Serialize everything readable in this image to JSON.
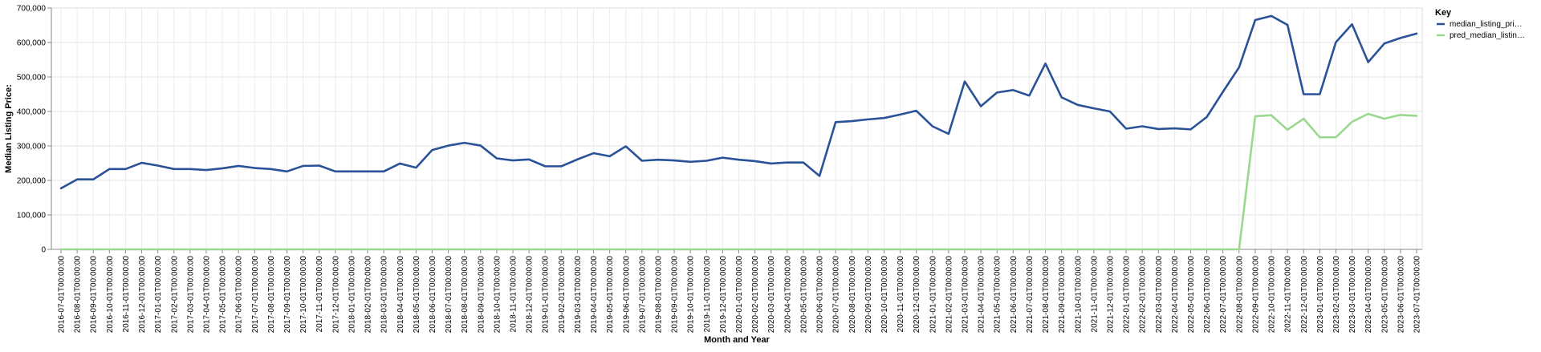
{
  "chart_data": {
    "type": "line",
    "xlabel": "Month and Year",
    "ylabel": "Median Listing Price:",
    "ylim": [
      0,
      700000
    ],
    "yticks": [
      "0",
      "100,000",
      "200,000",
      "300,000",
      "400,000",
      "500,000",
      "600,000",
      "700,000"
    ],
    "ytick_values": [
      0,
      100000,
      200000,
      300000,
      400000,
      500000,
      600000,
      700000
    ],
    "grid": true,
    "legend": {
      "title": "Key",
      "placement": "right",
      "entries": [
        {
          "label": "median_listing_pri…",
          "color": "#2a5298"
        },
        {
          "label": "pred_median_listin…",
          "color": "#9bd88f"
        }
      ]
    },
    "categories": [
      "2016-07-01T00:00:00",
      "2016-08-01T00:00:00",
      "2016-09-01T00:00:00",
      "2016-10-01T00:00:00",
      "2016-11-01T00:00:00",
      "2016-12-01T00:00:00",
      "2017-01-01T00:00:00",
      "2017-02-01T00:00:00",
      "2017-03-01T00:00:00",
      "2017-04-01T00:00:00",
      "2017-05-01T00:00:00",
      "2017-06-01T00:00:00",
      "2017-07-01T00:00:00",
      "2017-08-01T00:00:00",
      "2017-09-01T00:00:00",
      "2017-10-01T00:00:00",
      "2017-11-01T00:00:00",
      "2017-12-01T00:00:00",
      "2018-01-01T00:00:00",
      "2018-02-01T00:00:00",
      "2018-03-01T00:00:00",
      "2018-04-01T00:00:00",
      "2018-05-01T00:00:00",
      "2018-06-01T00:00:00",
      "2018-07-01T00:00:00",
      "2018-08-01T00:00:00",
      "2018-09-01T00:00:00",
      "2018-10-01T00:00:00",
      "2018-11-01T00:00:00",
      "2018-12-01T00:00:00",
      "2019-01-01T00:00:00",
      "2019-02-01T00:00:00",
      "2019-03-01T00:00:00",
      "2019-04-01T00:00:00",
      "2019-05-01T00:00:00",
      "2019-06-01T00:00:00",
      "2019-07-01T00:00:00",
      "2019-08-01T00:00:00",
      "2019-09-01T00:00:00",
      "2019-10-01T00:00:00",
      "2019-11-01T00:00:00",
      "2019-12-01T00:00:00",
      "2020-01-01T00:00:00",
      "2020-02-01T00:00:00",
      "2020-03-01T00:00:00",
      "2020-04-01T00:00:00",
      "2020-05-01T00:00:00",
      "2020-06-01T00:00:00",
      "2020-07-01T00:00:00",
      "2020-08-01T00:00:00",
      "2020-09-01T00:00:00",
      "2020-10-01T00:00:00",
      "2020-11-01T00:00:00",
      "2020-12-01T00:00:00",
      "2021-01-01T00:00:00",
      "2021-02-01T00:00:00",
      "2021-03-01T00:00:00",
      "2021-04-01T00:00:00",
      "2021-05-01T00:00:00",
      "2021-06-01T00:00:00",
      "2021-07-01T00:00:00",
      "2021-08-01T00:00:00",
      "2021-09-01T00:00:00",
      "2021-10-01T00:00:00",
      "2021-11-01T00:00:00",
      "2021-12-01T00:00:00",
      "2022-01-01T00:00:00",
      "2022-02-01T00:00:00",
      "2022-03-01T00:00:00",
      "2022-04-01T00:00:00",
      "2022-05-01T00:00:00",
      "2022-06-01T00:00:00",
      "2022-07-01T00:00:00",
      "2022-08-01T00:00:00",
      "2022-09-01T00:00:00",
      "2022-10-01T00:00:00",
      "2022-11-01T00:00:00",
      "2022-12-01T00:00:00",
      "2023-01-01T00:00:00",
      "2023-02-01T00:00:00",
      "2023-03-01T00:00:00",
      "2023-04-01T00:00:00",
      "2023-05-01T00:00:00",
      "2023-06-01T00:00:00",
      "2023-07-01T00:00:00"
    ],
    "series": [
      {
        "name": "median_listing_pri…",
        "color": "#2a5298",
        "values": [
          177000,
          203000,
          203000,
          233000,
          233000,
          251000,
          243000,
          233000,
          233000,
          230000,
          235000,
          242000,
          236000,
          233000,
          226000,
          242000,
          243000,
          226000,
          226000,
          226000,
          226000,
          249000,
          237000,
          288000,
          301000,
          309000,
          301000,
          264000,
          258000,
          261000,
          241000,
          241000,
          261000,
          279000,
          270000,
          299000,
          257000,
          260000,
          258000,
          254000,
          257000,
          266000,
          260000,
          256000,
          249000,
          252000,
          252000,
          213000,
          369000,
          372000,
          377000,
          381000,
          391000,
          402000,
          357000,
          335000,
          487000,
          415000,
          455000,
          462000,
          446000,
          539000,
          441000,
          419000,
          409000,
          400000,
          350000,
          357000,
          349000,
          351000,
          348000,
          384000,
          457000,
          528000,
          665000,
          677000,
          651000,
          450000,
          450000,
          601000,
          653000,
          543000,
          597000,
          613000,
          626000
        ]
      },
      {
        "name": "pred_median_listin…",
        "color": "#9bd88f",
        "values": [
          0,
          0,
          0,
          0,
          0,
          0,
          0,
          0,
          0,
          0,
          0,
          0,
          0,
          0,
          0,
          0,
          0,
          0,
          0,
          0,
          0,
          0,
          0,
          0,
          0,
          0,
          0,
          0,
          0,
          0,
          0,
          0,
          0,
          0,
          0,
          0,
          0,
          0,
          0,
          0,
          0,
          0,
          0,
          0,
          0,
          0,
          0,
          0,
          0,
          0,
          0,
          0,
          0,
          0,
          0,
          0,
          0,
          0,
          0,
          0,
          0,
          0,
          0,
          0,
          0,
          0,
          0,
          0,
          0,
          0,
          0,
          0,
          0,
          0,
          386000,
          389000,
          347000,
          379000,
          325000,
          325000,
          370000,
          393000,
          379000,
          390000,
          387000
        ]
      }
    ]
  }
}
